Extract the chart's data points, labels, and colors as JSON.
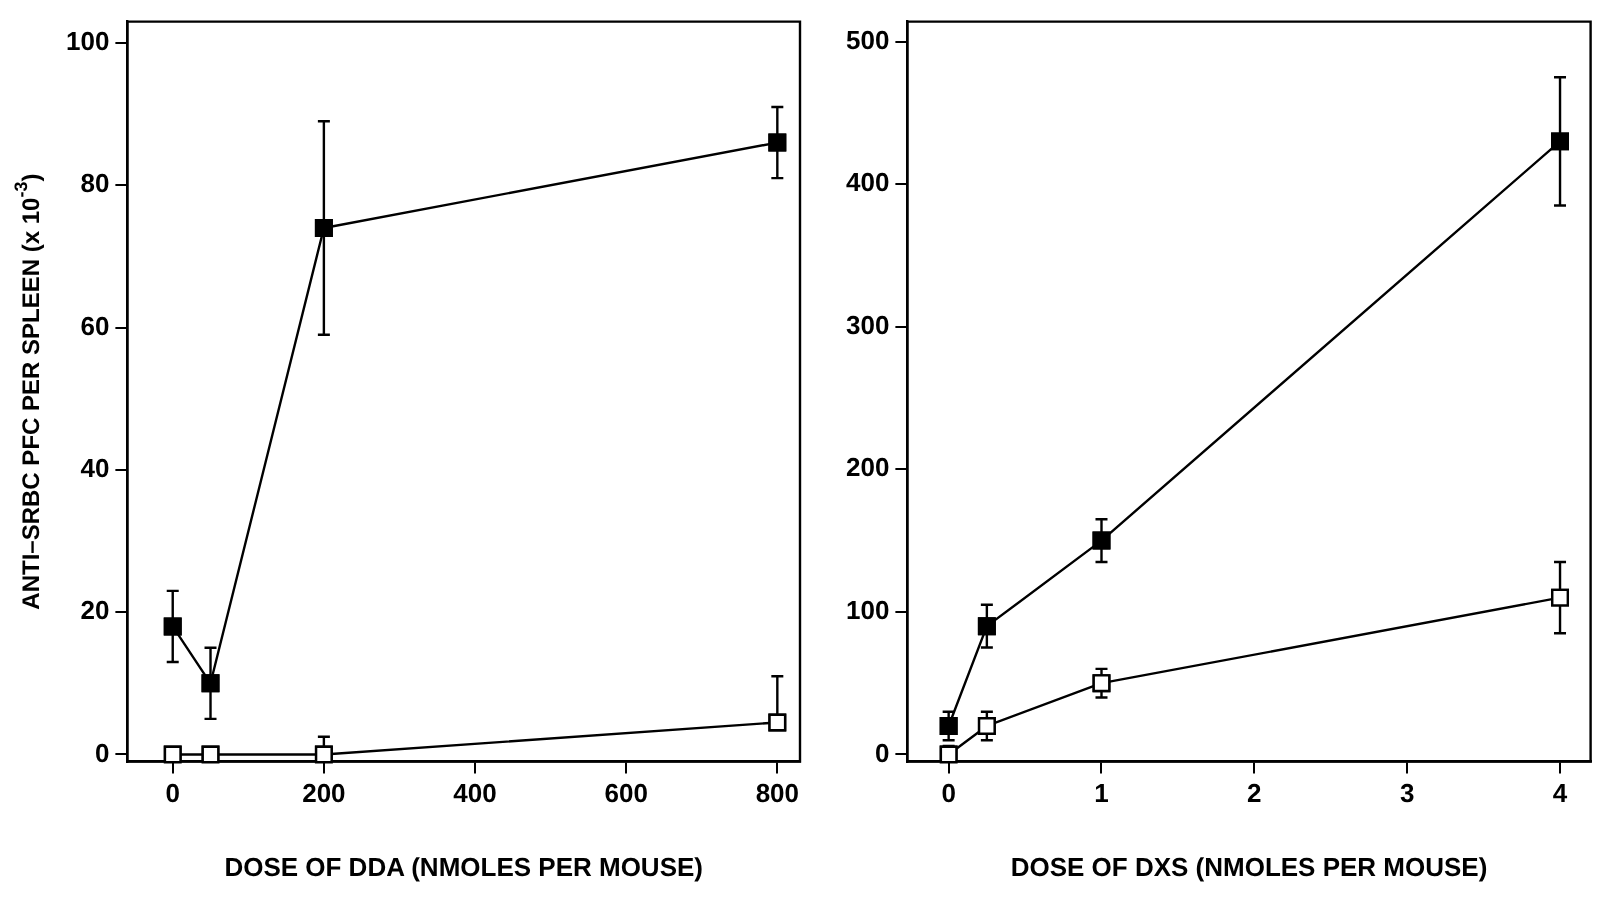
{
  "chart_data": [
    {
      "type": "line",
      "xlabel": "DOSE OF DDA (NMOLES PER MOUSE)",
      "ylabel": "ANTI–SRBC PFC PER SPLEEN (x 10$^{-3}$)",
      "x": [
        0,
        50,
        200,
        800
      ],
      "xlim": [
        -60,
        830
      ],
      "ylim": [
        -1,
        103
      ],
      "xticks": [
        0,
        200,
        400,
        600,
        800
      ],
      "yticks": [
        0,
        20,
        40,
        60,
        80,
        100
      ],
      "grid": false,
      "legend": false,
      "marker": "square",
      "series": [
        {
          "color": "#000000",
          "values": [
            18,
            10,
            74,
            86
          ],
          "errors": [
            5,
            5,
            15,
            5
          ]
        },
        {
          "color": "#ffffff",
          "values": [
            0,
            0,
            0,
            4.5
          ],
          "errors": [
            null,
            null,
            [
              0,
              2.5
            ],
            [
              4.5,
              11
            ]
          ]
        }
      ]
    },
    {
      "type": "line",
      "xlabel": "DOSE OF DXS (NMOLES PER MOUSE)",
      "x": [
        0,
        0.25,
        1,
        4
      ],
      "xlim": [
        -0.27,
        4.2
      ],
      "ylim": [
        -5,
        514
      ],
      "xticks": [
        0,
        1,
        2,
        3,
        4
      ],
      "yticks": [
        0,
        100,
        200,
        300,
        400,
        500
      ],
      "grid": false,
      "legend": false,
      "marker": "square",
      "series": [
        {
          "color": "#000000",
          "values": [
            20,
            90,
            150,
            430
          ],
          "errors": [
            10,
            15,
            15,
            45
          ]
        },
        {
          "color": "#ffffff",
          "values": [
            0,
            20,
            50,
            110
          ],
          "errors": [
            [
              0,
              6
            ],
            10,
            10,
            25
          ]
        }
      ]
    }
  ]
}
